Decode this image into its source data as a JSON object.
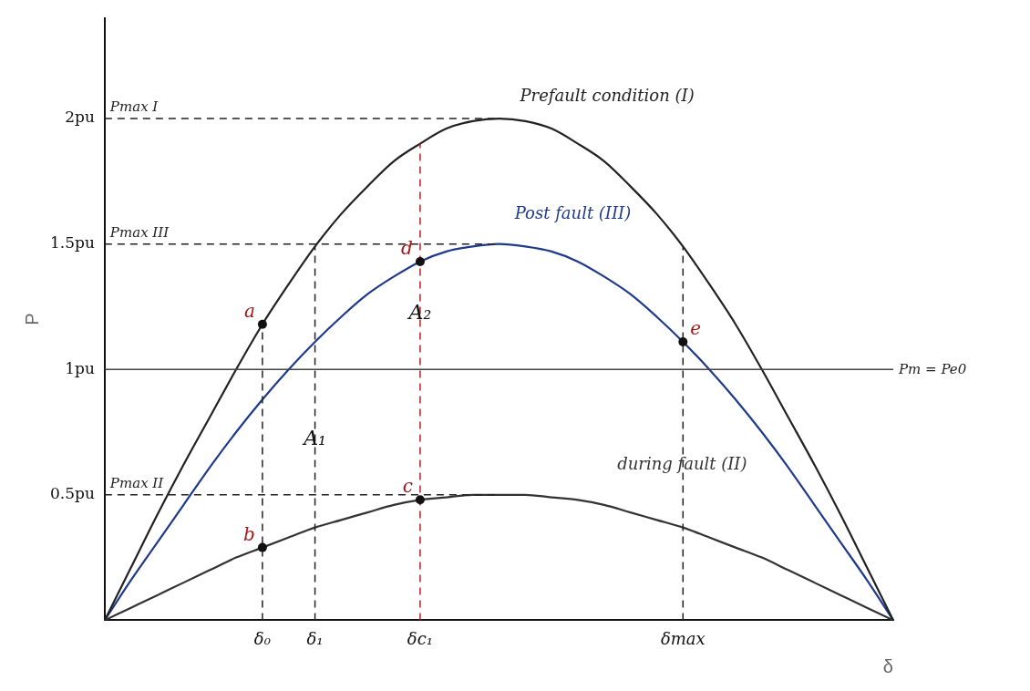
{
  "chart_data": {
    "type": "line",
    "xlabel": "δ",
    "ylabel": "P",
    "categories": [
      null,
      null,
      null,
      null,
      null,
      null,
      "δ₀",
      null,
      "δ₁",
      null,
      null,
      null,
      "δc₁",
      null,
      null,
      null,
      null,
      null,
      null,
      null,
      null,
      null,
      "δmax",
      null,
      null,
      null,
      null,
      null,
      null,
      null,
      null
    ],
    "series": [
      {
        "name": "Prefault condition (I)",
        "color": "#222222",
        "values": [
          0,
          0.21,
          0.42,
          0.62,
          0.81,
          1,
          1.18,
          1.34,
          1.49,
          1.62,
          1.73,
          1.83,
          1.9,
          1.96,
          1.99,
          2,
          1.99,
          1.96,
          1.9,
          1.83,
          1.73,
          1.62,
          1.49,
          1.34,
          1.18,
          1,
          0.81,
          0.62,
          0.42,
          0.21,
          0
        ]
      },
      {
        "name": "Post fault (III)",
        "color": "#1f3a8a",
        "values": [
          0,
          0.16,
          0.31,
          0.46,
          0.61,
          0.75,
          0.88,
          1,
          1.11,
          1.21,
          1.3,
          1.37,
          1.43,
          1.47,
          1.49,
          1.5,
          1.49,
          1.47,
          1.43,
          1.37,
          1.3,
          1.21,
          1.11,
          1,
          0.88,
          0.75,
          0.61,
          0.46,
          0.31,
          0.16,
          0
        ]
      },
      {
        "name": "during fault (II)",
        "color": "#333333",
        "values": [
          0,
          0.05,
          0.1,
          0.15,
          0.2,
          0.25,
          0.29,
          0.33,
          0.37,
          0.4,
          0.43,
          0.46,
          0.48,
          0.49,
          0.5,
          0.5,
          0.5,
          0.49,
          0.48,
          0.46,
          0.43,
          0.4,
          0.37,
          0.33,
          0.29,
          0.25,
          0.2,
          0.15,
          0.1,
          0.05,
          0
        ]
      }
    ],
    "ylim": [
      0,
      2.4
    ],
    "yticks": [
      {
        "value": 0.5,
        "label": "0.5pu"
      },
      {
        "value": 1,
        "label": "1pu"
      },
      {
        "value": 1.5,
        "label": "1.5pu"
      },
      {
        "value": 2,
        "label": "2pu"
      }
    ],
    "grid": false,
    "legend": false,
    "marker": "none",
    "line_style": "solid",
    "ref_lines": [
      {
        "axis": "y",
        "value": 2,
        "label": "Pmax I",
        "line_style": "dashed",
        "color": "#222222"
      },
      {
        "axis": "y",
        "value": 1.5,
        "label": "Pmax III",
        "line_style": "dashed",
        "color": "#222222"
      },
      {
        "axis": "y",
        "value": 0.5,
        "label": "Pmax II",
        "line_style": "dashed",
        "color": "#222222"
      },
      {
        "axis": "y",
        "value": 1,
        "label": "Pm = Pe0",
        "line_style": "solid",
        "color": "#444444"
      },
      {
        "axis": "x",
        "value": "δ₀",
        "line_style": "dashed",
        "color": "#222222"
      },
      {
        "axis": "x",
        "value": "δ₁",
        "line_style": "dashed",
        "color": "#222222"
      },
      {
        "axis": "x",
        "value": "δc₁",
        "line_style": "dashed",
        "color": "#b22222"
      },
      {
        "axis": "x",
        "value": "δmax",
        "line_style": "dashed",
        "color": "#222222"
      }
    ],
    "annotations": [
      {
        "text": "a",
        "x": "δ₀",
        "y": 1.18
      },
      {
        "text": "b",
        "x": "δ₀",
        "y": 0.29
      },
      {
        "text": "c",
        "x": "δc₁",
        "y": 0.48
      },
      {
        "text": "d",
        "x": "δc₁",
        "y": 1.43
      },
      {
        "text": "e",
        "x": "δmax",
        "y": 1.11
      },
      {
        "text": "A₁",
        "x": "δ₁",
        "y": 0.7
      },
      {
        "text": "A₂",
        "x": "δc₁",
        "y": 1.2
      }
    ]
  }
}
